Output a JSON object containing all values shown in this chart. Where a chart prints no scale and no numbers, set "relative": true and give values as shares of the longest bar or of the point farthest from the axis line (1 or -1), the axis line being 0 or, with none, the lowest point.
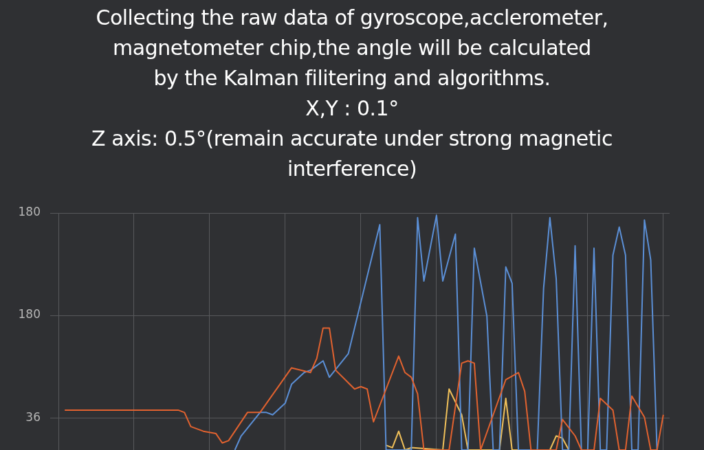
{
  "chart_data": {
    "type": "line",
    "title": "Collecting the raw data of gyroscope,acclerometer,\nmagnetometer chip,the angle will be calculated\nby the Kalman filitering and algorithms.\nX,Y : 0.1°\nZ axis: 0.5°(remain accurate under strong magnetic\ninterference)",
    "categories": [
      null,
      null,
      null,
      null,
      null,
      null,
      null,
      null,
      null,
      null,
      null,
      null,
      null,
      null,
      null,
      null,
      null,
      null,
      null,
      null,
      null,
      null,
      null,
      null,
      null,
      null,
      null,
      null,
      null,
      null,
      null,
      null,
      null,
      null,
      null,
      null,
      null,
      null,
      null,
      null,
      null,
      null,
      null,
      null,
      null,
      null,
      null,
      null,
      null,
      null,
      null,
      null,
      null,
      null,
      null,
      null,
      null,
      null,
      null,
      null,
      null,
      null,
      null,
      null,
      null,
      null,
      null,
      null,
      null,
      null,
      null,
      null,
      null,
      null,
      null,
      null,
      null,
      null,
      null,
      null,
      null,
      null,
      null,
      null,
      null,
      null,
      null,
      null,
      null,
      null,
      null,
      null,
      null,
      null,
      null,
      null,
      null,
      null
    ],
    "series": [
      {
        "color": "#e2622f",
        "values": [
          null,
          0.17,
          null,
          null,
          null,
          null,
          null,
          null,
          null,
          null,
          null,
          null,
          null,
          null,
          null,
          null,
          null,
          null,
          null,
          0.17,
          0.16,
          0.1,
          null,
          0.08,
          null,
          0.07,
          0.03,
          0.04,
          null,
          null,
          0.16,
          null,
          0.16,
          null,
          null,
          null,
          null,
          0.35,
          null,
          null,
          0.33,
          0.39,
          0.52,
          0.52,
          0.34,
          null,
          null,
          0.26,
          0.27,
          0.26,
          0.12,
          null,
          null,
          null,
          0.4,
          0.33,
          0.31,
          0.24,
          0,
          null,
          null,
          null,
          0,
          null,
          0.37,
          0.38,
          0.37,
          0,
          null,
          null,
          null,
          0.3,
          null,
          0.33,
          0.25,
          0,
          null,
          null,
          null,
          0,
          0.13,
          null,
          0.06,
          0,
          null,
          0,
          0.22,
          null,
          0.17,
          0,
          0,
          0.23,
          null,
          0.14,
          0,
          0,
          0.15,
          null
        ]
      },
      {
        "color": "#5b8fd6",
        "values": [
          null,
          null,
          null,
          null,
          null,
          null,
          null,
          null,
          null,
          null,
          null,
          null,
          null,
          null,
          null,
          null,
          null,
          null,
          null,
          null,
          null,
          null,
          null,
          null,
          null,
          null,
          null,
          null,
          0,
          0.06,
          null,
          null,
          0.16,
          0.16,
          0.15,
          null,
          0.2,
          0.28,
          null,
          0.33,
          0.34,
          null,
          0.38,
          0.31,
          null,
          null,
          0.41,
          null,
          null,
          null,
          null,
          0.96,
          0,
          null,
          null,
          null,
          0,
          0.99,
          0.72,
          null,
          1,
          0.72,
          null,
          0.92,
          0,
          0,
          0.86,
          null,
          0.57,
          0,
          0,
          0.78,
          0.71,
          0,
          null,
          null,
          0,
          0.69,
          0.99,
          0.73,
          0,
          0,
          0.87,
          0,
          0,
          0.86,
          0,
          0,
          0.83,
          0.95,
          0.83,
          0,
          0,
          0.98,
          0.81,
          0,
          null,
          null
        ]
      },
      {
        "color": "#f0c05a",
        "values": [
          null,
          null,
          null,
          null,
          null,
          null,
          null,
          null,
          null,
          null,
          null,
          null,
          null,
          null,
          null,
          null,
          null,
          null,
          null,
          null,
          null,
          null,
          null,
          null,
          null,
          null,
          null,
          null,
          null,
          null,
          null,
          null,
          null,
          null,
          null,
          null,
          null,
          null,
          null,
          null,
          null,
          null,
          null,
          null,
          null,
          null,
          null,
          null,
          null,
          null,
          null,
          null,
          0.02,
          0.01,
          0.08,
          0,
          0.01,
          null,
          null,
          null,
          null,
          0,
          0.26,
          null,
          0.15,
          0,
          null,
          null,
          null,
          null,
          0,
          0.22,
          0,
          null,
          null,
          null,
          null,
          null,
          0,
          0.06,
          0.05,
          0,
          null,
          null,
          null,
          null,
          null,
          null,
          null,
          null,
          null,
          null,
          null,
          null,
          null,
          null,
          null,
          null
        ]
      }
    ],
    "relative": true,
    "annotations": [
      "180",
      "180",
      "36"
    ],
    "grid": true,
    "marker": "none",
    "line_style": "solid"
  }
}
